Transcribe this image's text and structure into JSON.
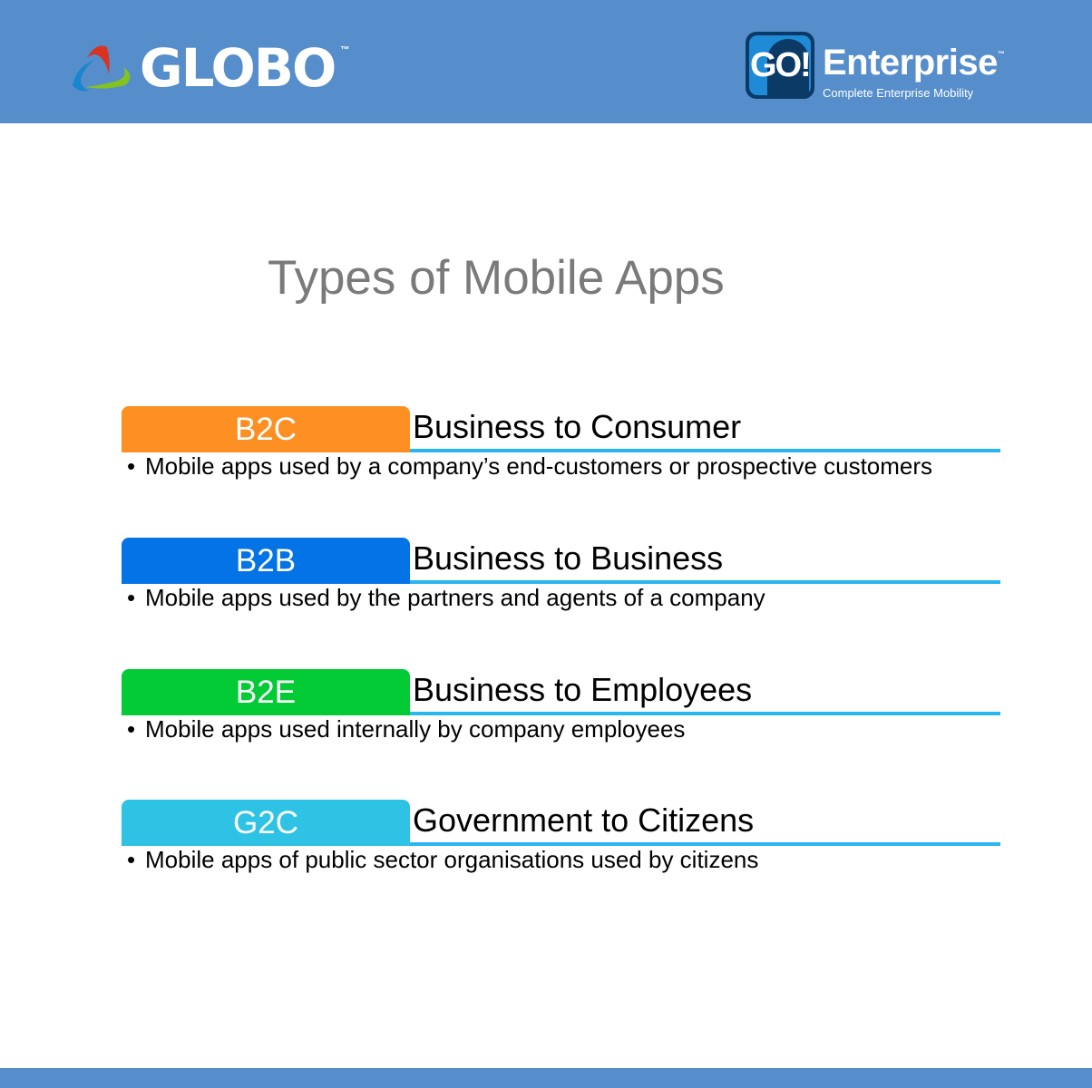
{
  "header": {
    "left_logo": {
      "text": "GLOBO",
      "tm": "™"
    },
    "right_logo": {
      "badge": "GO!",
      "title": "Enterprise",
      "tm": "™",
      "subtitle": "Complete Enterprise Mobility"
    },
    "color": "#568dcb"
  },
  "title": "Types of Mobile Apps",
  "items": [
    {
      "tag": "B2C",
      "heading": "Business to Consumer",
      "bullet": "Mobile apps used by a company’s end-customers or prospective customers",
      "color": "#fd8f23"
    },
    {
      "tag": "B2B",
      "heading": "Business to Business",
      "bullet": "Mobile apps used by the partners and agents of a company",
      "color": "#0473e6"
    },
    {
      "tag": "B2E",
      "heading": "Business to Employees",
      "bullet": "Mobile apps used internally by company employees",
      "color": "#03cb35"
    },
    {
      "tag": "G2C",
      "heading": "Government to Citizens",
      "bullet": "Mobile apps of public sector organisations used by citizens",
      "color": "#2ec3e5"
    }
  ],
  "underline_color": "#29b6ee"
}
